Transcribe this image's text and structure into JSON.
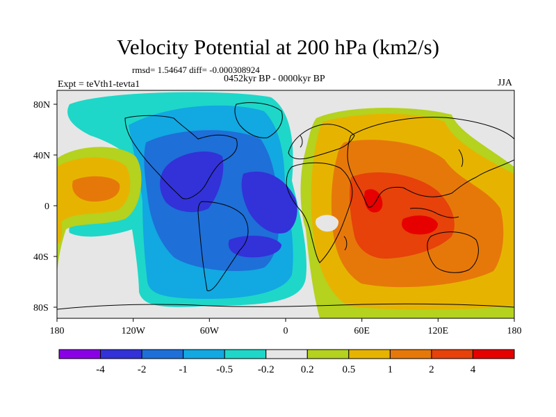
{
  "title": "Velocity Potential at 200 hPa (km2/s)",
  "stats_line": "rmsd= 1.54647 diff= -0.000308924",
  "period_line": "0452kyr BP - 0000kyr BP",
  "experiment_line": "Expt = teVth1-tevta1",
  "season": "JJA",
  "lat_ticks": [
    "80N",
    "40N",
    "0",
    "40S",
    "80S"
  ],
  "lon_ticks": [
    "180",
    "120W",
    "60W",
    "0",
    "60E",
    "120E",
    "180"
  ],
  "colorbar": {
    "labels": [
      "-4",
      "-2",
      "-1",
      "-0.5",
      "-0.2",
      "0.2",
      "0.5",
      "1",
      "2",
      "4"
    ],
    "colors": [
      "#8a00e6",
      "#3232d8",
      "#1e6fd8",
      "#12a8e2",
      "#1ed7c8",
      "#e6e6e6",
      "#b4d21e",
      "#e6b400",
      "#e6780a",
      "#e6420a",
      "#e60000"
    ]
  },
  "chart_data": {
    "type": "filled-contour-map",
    "variable": "Velocity Potential at 200 hPa",
    "units": "km2/s",
    "season": "JJA",
    "projection": "cylindrical equidistant",
    "lon_range": [
      -180,
      180
    ],
    "lat_range": [
      -90,
      90
    ],
    "contour_levels": [
      -4,
      -2,
      -1,
      -0.5,
      -0.2,
      0.2,
      0.5,
      1,
      2,
      4
    ],
    "features": [
      {
        "region": "Americas / Atlantic",
        "sign": "negative",
        "min_level": -2
      },
      {
        "region": "Africa / Indian Ocean / Maritime Continent",
        "sign": "positive",
        "max_level": 4
      },
      {
        "region": "Eastern Pacific",
        "sign": "positive",
        "max_level": 2
      }
    ]
  }
}
